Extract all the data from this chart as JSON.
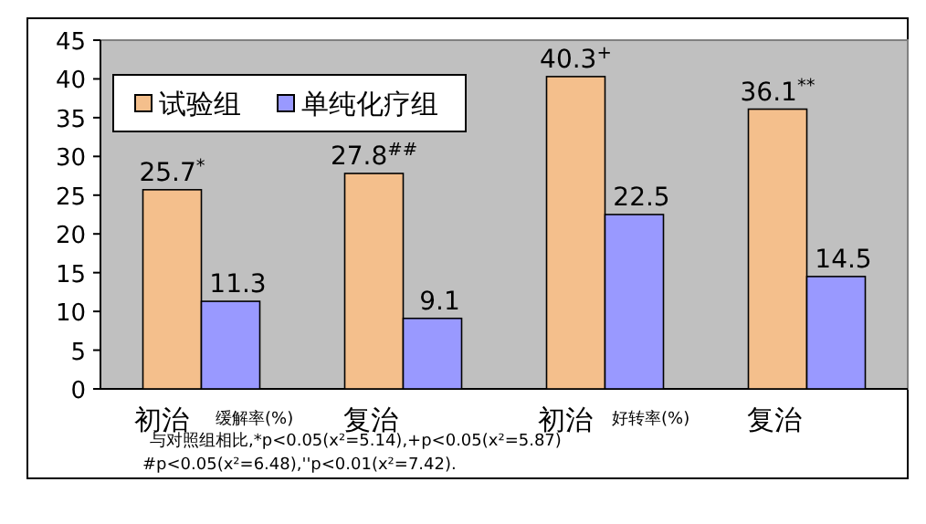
{
  "chart_data": {
    "type": "bar",
    "categories": [
      "初治",
      "复治",
      "初治",
      "复治"
    ],
    "series": [
      {
        "name": "试验组",
        "color": "#f4bf8c",
        "values": [
          25.7,
          27.8,
          40.3,
          36.1
        ],
        "value_labels": [
          "25.7$^{*}$",
          "27.8$^{##}$",
          "40.3$^{+}$",
          "36.1$^{**}$"
        ]
      },
      {
        "name": "单纯化疗组",
        "color": "#9999ff",
        "values": [
          11.3,
          9.1,
          22.5,
          14.5
        ],
        "value_labels": [
          "11.3",
          "9.1",
          "22.5",
          "14.5"
        ]
      }
    ],
    "ylim": [
      0,
      45
    ],
    "yticks": [
      0,
      5,
      10,
      15,
      20,
      25,
      30,
      35,
      40,
      45
    ],
    "grid": false,
    "legend": "top left",
    "annotations": [
      "缓解率(%)",
      "好转率(%)",
      "与对照组相比,*p<0.05(x²=5.14),+p<0.05(x²=5.87)",
      "#p<0.05(x²=6.48),''p<0.01(x²=7.42)."
    ]
  }
}
